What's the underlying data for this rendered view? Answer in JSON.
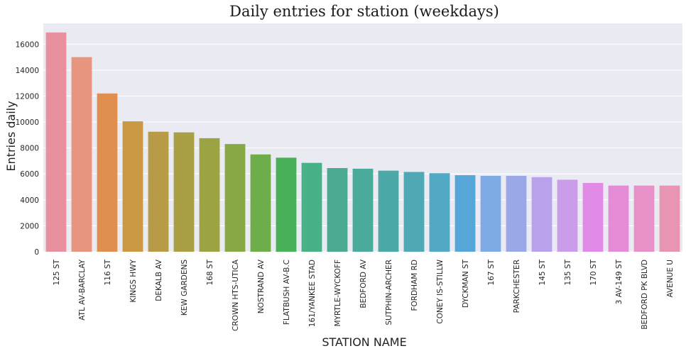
{
  "chart_data": {
    "type": "bar",
    "title": "Daily entries for station (weekdays)",
    "xlabel": "STATION NAME",
    "ylabel": "Entries daily",
    "ylim": [
      0,
      17600
    ],
    "yticks": [
      0,
      2000,
      4000,
      6000,
      8000,
      10000,
      12000,
      14000,
      16000
    ],
    "grid": true,
    "legend": "none",
    "background": "#EAEAF2",
    "categories": [
      "125 ST",
      "ATL AV-BARCLAY",
      "116 ST",
      "KINGS HWY",
      "DEKALB AV",
      "KEW GARDENS",
      "168 ST",
      "CROWN HTS-UTICA",
      "NOSTRAND AV",
      "FLATBUSH AV-B.C",
      "161/YANKEE STAD",
      "MYRTLE-WYCKOFF",
      "BEDFORD AV",
      "SUTPHIN-ARCHER",
      "FORDHAM RD",
      "CONEY IS-STILLW",
      "DYCKMAN ST",
      "167 ST",
      "PARKCHESTER",
      "145 ST",
      "135 ST",
      "170 ST",
      "3 AV-149 ST",
      "BEDFORD PK BLVD",
      "AVENUE U"
    ],
    "values": [
      16900,
      15000,
      12200,
      10050,
      9250,
      9200,
      8750,
      8300,
      7500,
      7250,
      6850,
      6450,
      6400,
      6250,
      6150,
      6050,
      5900,
      5850,
      5850,
      5750,
      5550,
      5300,
      5100,
      5100,
      5100
    ],
    "colors": [
      "#E8909E",
      "#E8957F",
      "#E08F4F",
      "#CB9844",
      "#B89B46",
      "#AA9F45",
      "#9BA343",
      "#88A846",
      "#6FAC4A",
      "#49B05A",
      "#49B188",
      "#4AAB92",
      "#4AAA9C",
      "#4BA9A8",
      "#4EA9B4",
      "#52A9C4",
      "#56A7D8",
      "#7FABE4",
      "#9AA8E8",
      "#B8A2EB",
      "#CB9CEA",
      "#E18BE6",
      "#E68CD6",
      "#E891C9",
      "#E895B3"
    ]
  }
}
